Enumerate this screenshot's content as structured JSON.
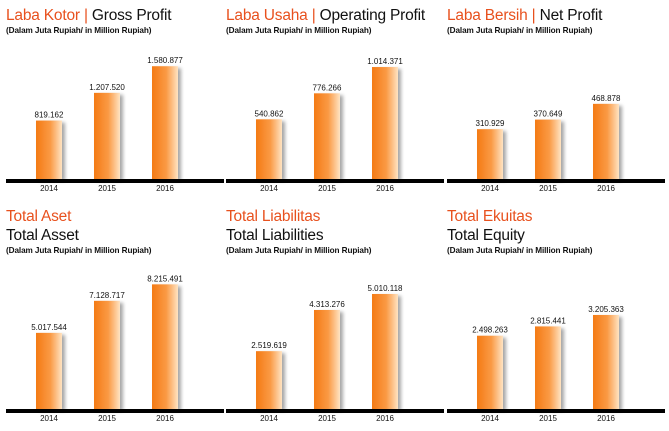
{
  "colors": {
    "accent": "#e8511e",
    "bar_dark": "#f47a14",
    "bar_light": "#ffe3c2",
    "axis": "#000000"
  },
  "subtitle": "(Dalam Juta Rupiah/ in Million Rupiah)",
  "panels": [
    {
      "title_id": "Laba Kotor",
      "sep": "|",
      "title_en": "Gross Profit"
    },
    {
      "title_id": "Laba Usaha",
      "sep": "|",
      "title_en": "Operating Profit"
    },
    {
      "title_id": "Laba Bersih",
      "sep": "|",
      "title_en": "Net Profit"
    },
    {
      "title_id": "Total Aset",
      "title_en": "Total Asset"
    },
    {
      "title_id": "Total Liabilitas",
      "title_en": "Total Liabilities"
    },
    {
      "title_id": "Total Ekuitas",
      "title_en": "Total Equity"
    }
  ],
  "chart_data": [
    {
      "type": "bar",
      "categories": [
        "2014",
        "2015",
        "2016"
      ],
      "values": [
        819162,
        1207520,
        1580877
      ],
      "labels": [
        "819.162",
        "1.207.520",
        "1.580.877"
      ],
      "ylim": [
        0,
        1640000
      ]
    },
    {
      "type": "bar",
      "categories": [
        "2014",
        "2015",
        "2016"
      ],
      "values": [
        540862,
        776266,
        1014371
      ],
      "labels": [
        "540.862",
        "776.266",
        "1.014.371"
      ],
      "ylim": [
        0,
        1060000
      ]
    },
    {
      "type": "bar",
      "categories": [
        "2014",
        "2015",
        "2016"
      ],
      "values": [
        310929,
        370649,
        468878
      ],
      "labels": [
        "310.929",
        "370.649",
        "468.878"
      ],
      "ylim": [
        0,
        730000
      ]
    },
    {
      "type": "bar",
      "categories": [
        "2014",
        "2015",
        "2016"
      ],
      "values": [
        5017544,
        7128717,
        8215491
      ],
      "labels": [
        "5.017.544",
        "7.128.717",
        "8.215.491"
      ],
      "ylim": [
        0,
        8700000
      ]
    },
    {
      "type": "bar",
      "categories": [
        "2014",
        "2015",
        "2016"
      ],
      "values": [
        2519619,
        4313276,
        5010118
      ],
      "labels": [
        "2.519.619",
        "4.313.276",
        "5.010.118"
      ],
      "ylim": [
        0,
        5750000
      ]
    },
    {
      "type": "bar",
      "categories": [
        "2014",
        "2015",
        "2016"
      ],
      "values": [
        2498263,
        2815441,
        3205363
      ],
      "labels": [
        "2.498.263",
        "2.815.441",
        "3.205.363"
      ],
      "ylim": [
        0,
        4500000
      ]
    }
  ]
}
